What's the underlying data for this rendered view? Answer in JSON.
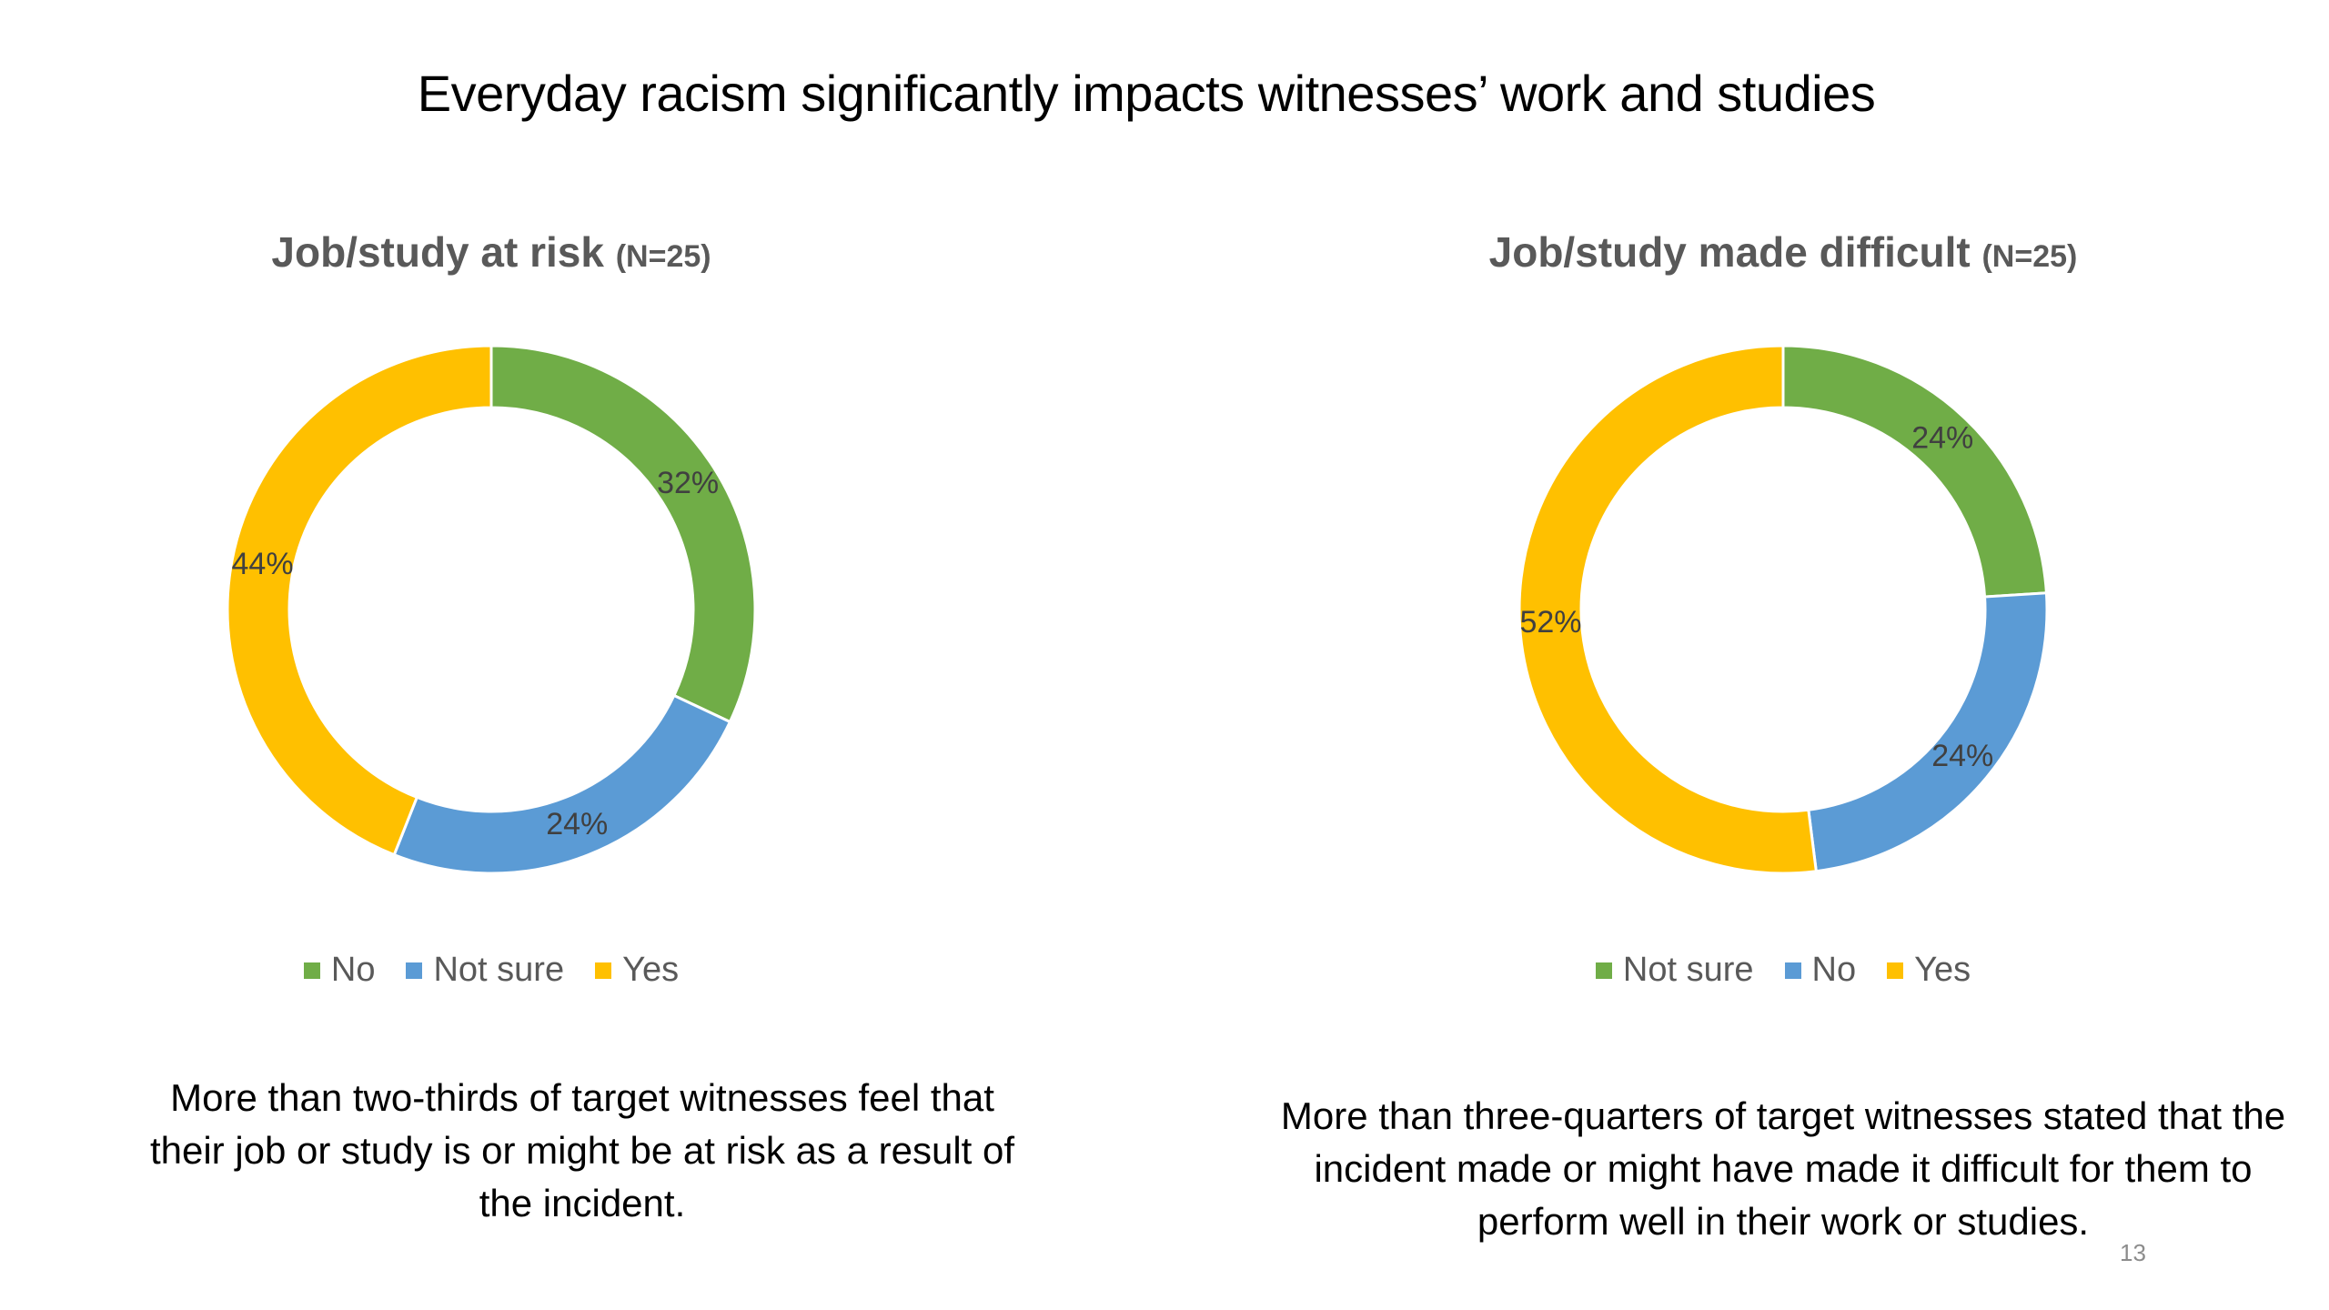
{
  "slide": {
    "title": "Everyday racism significantly impacts witnesses’ work and studies",
    "page_number": "13"
  },
  "colors": {
    "green": "#70AD47",
    "blue": "#5B9BD5",
    "yellow": "#FFC000",
    "label_text": "#404040",
    "title_text": "#595959"
  },
  "chart_data": [
    {
      "type": "pie",
      "title": "Job/study at risk",
      "title_n": "(N=25)",
      "categories": [
        "No",
        "Not sure",
        "Yes"
      ],
      "values": [
        32,
        24,
        44
      ],
      "labels": [
        "32%",
        "24%",
        "44%"
      ],
      "colors": [
        "#70AD47",
        "#5B9BD5",
        "#FFC000"
      ],
      "legend_position": "bottom",
      "caption": [
        "More than two-thirds of target witnesses feel that",
        "their job or study is or might be at risk as a result of",
        "the incident."
      ]
    },
    {
      "type": "pie",
      "title": "Job/study made difficult",
      "title_n": "(N=25)",
      "categories": [
        "Not sure",
        "No",
        "Yes"
      ],
      "values": [
        24,
        24,
        52
      ],
      "labels": [
        "24%",
        "24%",
        "52%"
      ],
      "colors": [
        "#70AD47",
        "#5B9BD5",
        "#FFC000"
      ],
      "legend_position": "bottom",
      "caption": [
        "More than three-quarters of target witnesses stated that the",
        "incident made or might have made it difficult for them to",
        "perform well in their work or studies."
      ]
    }
  ]
}
